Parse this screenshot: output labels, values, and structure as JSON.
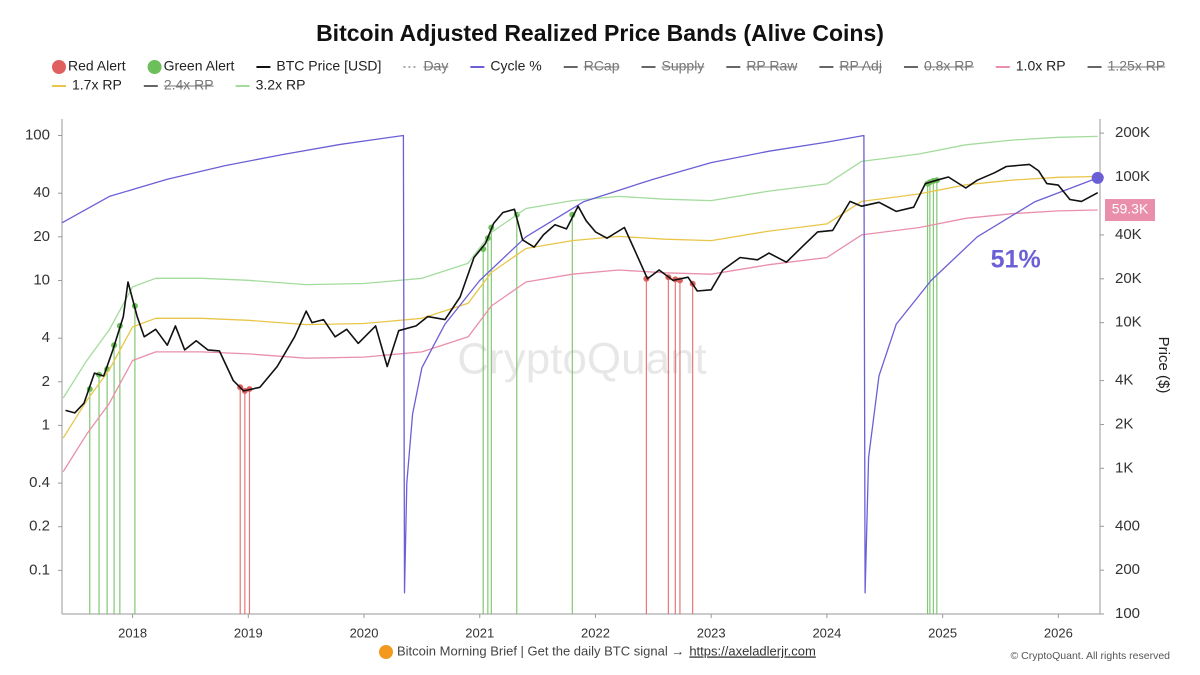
{
  "chart_data": {
    "type": "line",
    "title": "Bitcoin Adjusted Realized Price Bands (Alive Coins)",
    "log_scale": true,
    "grid": false,
    "xlim": [
      2017.39,
      2026.36
    ],
    "xticks": [
      2018,
      2019,
      2020,
      2021,
      2022,
      2023,
      2024,
      2025,
      2026
    ],
    "ylim": [
      0.05,
      130
    ],
    "yticks": [
      0.1,
      0.2,
      0.4,
      1,
      2,
      4,
      10,
      20,
      40,
      100
    ],
    "y2lim": [
      100,
      250000
    ],
    "y2ticks": [
      100,
      200,
      400,
      {
        "value": 1000,
        "label": "1K"
      },
      {
        "value": 2000,
        "label": "2K"
      },
      {
        "value": 4000,
        "label": "4K"
      },
      {
        "value": 10000,
        "label": "10K"
      },
      {
        "value": 20000,
        "label": "20K"
      },
      {
        "value": 40000,
        "label": "40K"
      },
      {
        "value": 100000,
        "label": "100K"
      },
      {
        "value": 200000,
        "label": "200K"
      }
    ],
    "y2label": "Price ($)",
    "watermark": "CryptoQuant",
    "series": [
      {
        "name": "Red Alert",
        "color": "#e0605f",
        "style": "alert",
        "axis": "y2",
        "x": [
          2018.93,
          2018.97,
          2019.01,
          2022.44,
          2022.63,
          2022.69,
          2022.73,
          2022.84
        ],
        "values": [
          3600,
          3400,
          3500,
          20000,
          20500,
          19800,
          19500,
          18500
        ]
      },
      {
        "name": "Green Alert",
        "color": "#6cbf5a",
        "style": "alert",
        "axis": "y2",
        "x": [
          2017.63,
          2017.71,
          2017.78,
          2017.84,
          2017.89,
          2018.02,
          2021.03,
          2021.07,
          2021.1,
          2021.32,
          2021.8,
          2024.87,
          2024.89,
          2024.92,
          2024.95
        ],
        "values": [
          3500,
          4400,
          4800,
          7000,
          9500,
          13000,
          32000,
          38000,
          45000,
          55000,
          55000,
          90000,
          92000,
          94000,
          95000
        ]
      },
      {
        "name": "BTC Price [USD]",
        "color": "#111111",
        "style": "line",
        "axis": "y2",
        "x": [
          2017.42,
          2017.5,
          2017.58,
          2017.67,
          2017.75,
          2017.83,
          2017.92,
          2017.96,
          2018.04,
          2018.1,
          2018.2,
          2018.3,
          2018.37,
          2018.45,
          2018.55,
          2018.65,
          2018.75,
          2018.87,
          2018.96,
          2019.1,
          2019.25,
          2019.4,
          2019.5,
          2019.55,
          2019.65,
          2019.75,
          2019.85,
          2019.95,
          2020.1,
          2020.2,
          2020.3,
          2020.45,
          2020.55,
          2020.7,
          2020.83,
          2020.95,
          2021.05,
          2021.12,
          2021.2,
          2021.3,
          2021.37,
          2021.47,
          2021.55,
          2021.65,
          2021.75,
          2021.85,
          2021.92,
          2022.0,
          2022.1,
          2022.25,
          2022.35,
          2022.45,
          2022.55,
          2022.67,
          2022.8,
          2022.88,
          2023.0,
          2023.1,
          2023.25,
          2023.4,
          2023.5,
          2023.65,
          2023.8,
          2023.92,
          2024.05,
          2024.2,
          2024.3,
          2024.45,
          2024.6,
          2024.75,
          2024.85,
          2024.95,
          2025.05,
          2025.2,
          2025.3,
          2025.45,
          2025.55,
          2025.75,
          2025.83,
          2025.9,
          2026.0,
          2026.1,
          2026.2,
          2026.3,
          2026.34
        ],
        "values": [
          2500,
          2400,
          2800,
          4500,
          4300,
          6500,
          11000,
          19000,
          11000,
          8000,
          9000,
          7000,
          9500,
          6500,
          7500,
          6500,
          6400,
          4000,
          3400,
          3600,
          5000,
          8000,
          12000,
          10000,
          10500,
          8000,
          9000,
          7200,
          9500,
          5000,
          8800,
          9500,
          11000,
          10500,
          15000,
          28000,
          35000,
          48000,
          57000,
          60000,
          37000,
          33000,
          40000,
          47000,
          44000,
          63000,
          50000,
          42000,
          38000,
          45000,
          30000,
          20000,
          23000,
          19500,
          20500,
          16500,
          16800,
          23000,
          28000,
          27000,
          30000,
          26000,
          34000,
          42000,
          43000,
          68000,
          63000,
          67000,
          58000,
          62000,
          90000,
          95000,
          100000,
          84000,
          95000,
          107000,
          118000,
          122000,
          110000,
          90000,
          88000,
          70000,
          68000,
          75000,
          78000
        ]
      },
      {
        "name": "Day",
        "color": "#aaaaaa",
        "style": "dotted",
        "hidden": true
      },
      {
        "name": "Cycle %",
        "color": "#6b5fd6",
        "style": "line",
        "axis": "y",
        "end_label": "51%",
        "x": [
          2017.39,
          2017.8,
          2018.3,
          2018.8,
          2019.3,
          2019.8,
          2020.34,
          2020.35,
          2020.37,
          2020.42,
          2020.5,
          2020.7,
          2021.0,
          2021.4,
          2021.9,
          2022.5,
          2023.0,
          2023.5,
          2024.0,
          2024.32,
          2024.33,
          2024.36,
          2024.45,
          2024.6,
          2024.9,
          2025.3,
          2025.8,
          2026.34
        ],
        "values": [
          25,
          38,
          50,
          62,
          74,
          87,
          100,
          0.07,
          0.4,
          1.2,
          2.5,
          5,
          10,
          20,
          35,
          50,
          65,
          78,
          90,
          100,
          0.07,
          0.6,
          2.2,
          5,
          10,
          20,
          35,
          51
        ]
      },
      {
        "name": "RCap",
        "color": "#666666",
        "style": "line",
        "hidden": true
      },
      {
        "name": "Supply",
        "color": "#666666",
        "style": "line",
        "hidden": true
      },
      {
        "name": "RP Raw",
        "color": "#666666",
        "style": "line",
        "hidden": true
      },
      {
        "name": "RP Adj",
        "color": "#666666",
        "style": "line",
        "hidden": true
      },
      {
        "name": "0.8x RP",
        "color": "#666666",
        "style": "line",
        "hidden": true
      },
      {
        "name": "1.0x RP",
        "color": "#e98fab",
        "style": "line",
        "axis": "y2",
        "end_label": "59.3K",
        "x": [
          2017.4,
          2017.6,
          2017.8,
          2018.0,
          2018.2,
          2018.6,
          2019.0,
          2019.5,
          2020.0,
          2020.5,
          2020.9,
          2021.1,
          2021.4,
          2021.8,
          2022.2,
          2022.6,
          2023.0,
          2023.5,
          2024.0,
          2024.3,
          2024.8,
          2025.2,
          2025.6,
          2026.0,
          2026.34
        ],
        "values": [
          950,
          1700,
          2800,
          5500,
          6300,
          6300,
          6100,
          5700,
          5800,
          6300,
          8000,
          13000,
          19000,
          21500,
          23000,
          22000,
          21500,
          25000,
          28000,
          40000,
          45000,
          52000,
          56000,
          58500,
          59300
        ]
      },
      {
        "name": "1.25x RP",
        "color": "#666666",
        "style": "line",
        "hidden": true
      },
      {
        "name": "1.7x RP",
        "color": "#e9c64a",
        "style": "line",
        "axis": "y2",
        "x": [
          2017.4,
          2017.6,
          2017.8,
          2018.0,
          2018.2,
          2018.6,
          2019.0,
          2019.5,
          2020.0,
          2020.5,
          2020.9,
          2021.1,
          2021.4,
          2021.8,
          2022.2,
          2022.6,
          2023.0,
          2023.5,
          2024.0,
          2024.3,
          2024.8,
          2025.2,
          2025.6,
          2026.0,
          2026.34
        ],
        "values": [
          1615,
          2890,
          4760,
          9350,
          10710,
          10710,
          10370,
          9690,
          9860,
          10710,
          13600,
          22100,
          32300,
          36550,
          39100,
          37400,
          36550,
          42500,
          47600,
          68000,
          76500,
          88400,
          95200,
          99450,
          100810
        ]
      },
      {
        "name": "2.4x RP",
        "color": "#666666",
        "style": "line",
        "hidden": true
      },
      {
        "name": "3.2x RP",
        "color": "#a3dc9c",
        "style": "line",
        "axis": "y2",
        "x": [
          2017.4,
          2017.6,
          2017.8,
          2018.0,
          2018.2,
          2018.6,
          2019.0,
          2019.5,
          2020.0,
          2020.5,
          2020.9,
          2021.1,
          2021.4,
          2021.8,
          2022.2,
          2022.6,
          2023.0,
          2023.5,
          2024.0,
          2024.3,
          2024.8,
          2025.2,
          2025.6,
          2026.0,
          2026.34
        ],
        "values": [
          3040,
          5440,
          8960,
          17600,
          20160,
          20160,
          19520,
          18240,
          18560,
          20160,
          25600,
          41600,
          60800,
          68800,
          73600,
          70400,
          68800,
          80000,
          89600,
          128000,
          144000,
          166400,
          179200,
          187200,
          189760
        ]
      }
    ]
  },
  "footer": {
    "text": "Bitcoin Morning Brief | Get the daily BTC signal →",
    "link": "https://axeladlerjr.com",
    "copyright": "© CryptoQuant. All rights reserved"
  }
}
